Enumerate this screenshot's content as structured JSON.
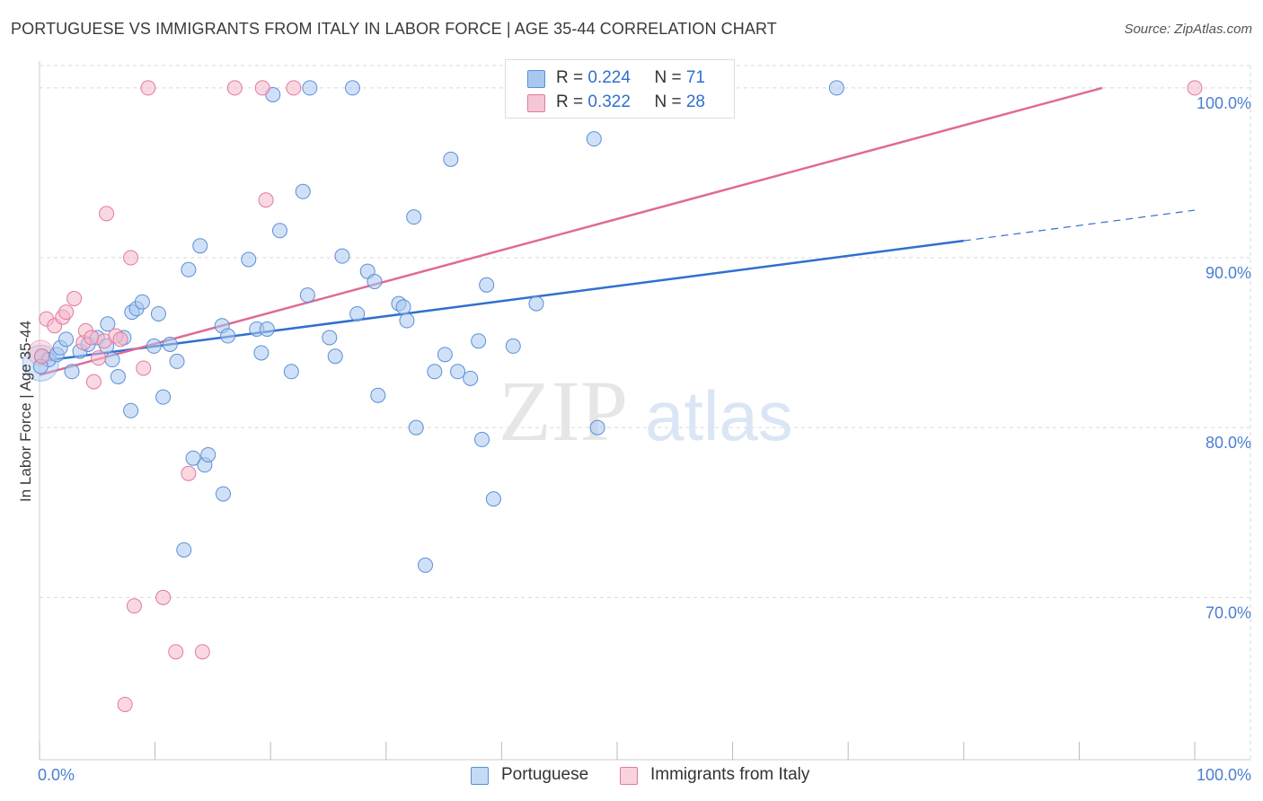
{
  "header": {
    "title": "PORTUGUESE VS IMMIGRANTS FROM ITALY IN LABOR FORCE | AGE 35-44 CORRELATION CHART",
    "source": "Source: ZipAtlas.com"
  },
  "legend": {
    "rows": [
      {
        "r_label": "R = ",
        "r_value": "0.224",
        "n_label": "N = ",
        "n_value": "71"
      },
      {
        "r_label": "R = ",
        "r_value": "0.322",
        "n_label": "N = ",
        "n_value": "28"
      }
    ]
  },
  "colors": {
    "blue_fill": "#a9c8f0",
    "blue_stroke": "#5b8fd6",
    "blue_line": "#2f6fd0",
    "pink_fill": "#f5b8cb",
    "pink_stroke": "#e07aa0",
    "pink_line": "#e06a95",
    "grid": "#d9d9d9",
    "tick_text": "#4a7fd0"
  },
  "watermark": {
    "zip": "ZIP",
    "atlas": "atlas"
  },
  "chart_data": {
    "type": "scatter",
    "title": "PORTUGUESE VS IMMIGRANTS FROM ITALY IN LABOR FORCE | AGE 35-44 CORRELATION CHART",
    "xlabel": "",
    "ylabel": "In Labor Force | Age 35-44",
    "xlim": [
      0,
      100
    ],
    "ylim": [
      60.5,
      101
    ],
    "x_tick_labels": [
      "0.0%",
      "100.0%"
    ],
    "y_ticks": [
      {
        "value": 70,
        "label": "70.0%"
      },
      {
        "value": 80,
        "label": "80.0%"
      },
      {
        "value": 90,
        "label": "90.0%"
      },
      {
        "value": 100,
        "label": "100.0%"
      }
    ],
    "series": [
      {
        "name": "Portuguese",
        "r": 0.224,
        "n": 71,
        "trend": {
          "x0": 0,
          "y0": 83.9,
          "x1": 80,
          "y1": 91.0,
          "dash_x1": 100,
          "dash_y1": 92.8
        },
        "points": [
          [
            0.2,
            84.2
          ],
          [
            0.8,
            84.0
          ],
          [
            1.5,
            84.3
          ],
          [
            1.8,
            84.7
          ],
          [
            2.3,
            85.2
          ],
          [
            2.8,
            83.3
          ],
          [
            3.5,
            84.5
          ],
          [
            4.2,
            84.9
          ],
          [
            5.0,
            85.3
          ],
          [
            5.8,
            84.8
          ],
          [
            5.9,
            86.1
          ],
          [
            6.3,
            84.0
          ],
          [
            6.8,
            83.0
          ],
          [
            7.3,
            85.3
          ],
          [
            7.9,
            81.0
          ],
          [
            8.0,
            86.8
          ],
          [
            8.4,
            87.0
          ],
          [
            8.9,
            87.4
          ],
          [
            9.9,
            84.8
          ],
          [
            10.3,
            86.7
          ],
          [
            10.7,
            81.8
          ],
          [
            11.3,
            84.9
          ],
          [
            11.9,
            83.9
          ],
          [
            12.5,
            72.8
          ],
          [
            12.9,
            89.3
          ],
          [
            13.3,
            78.2
          ],
          [
            13.9,
            90.7
          ],
          [
            14.3,
            77.8
          ],
          [
            14.6,
            78.4
          ],
          [
            15.9,
            76.1
          ],
          [
            15.8,
            86.0
          ],
          [
            16.3,
            85.4
          ],
          [
            18.1,
            89.9
          ],
          [
            18.8,
            85.8
          ],
          [
            19.2,
            84.4
          ],
          [
            19.7,
            85.8
          ],
          [
            20.2,
            99.6
          ],
          [
            20.8,
            91.6
          ],
          [
            21.8,
            83.3
          ],
          [
            22.8,
            93.9
          ],
          [
            23.2,
            87.8
          ],
          [
            23.4,
            100.0
          ],
          [
            25.1,
            85.3
          ],
          [
            25.6,
            84.2
          ],
          [
            26.2,
            90.1
          ],
          [
            27.1,
            100.0
          ],
          [
            27.5,
            86.7
          ],
          [
            28.4,
            89.2
          ],
          [
            29.0,
            88.6
          ],
          [
            29.3,
            81.9
          ],
          [
            31.1,
            87.3
          ],
          [
            31.5,
            87.1
          ],
          [
            31.8,
            86.3
          ],
          [
            32.4,
            92.4
          ],
          [
            32.6,
            80.0
          ],
          [
            33.4,
            71.9
          ],
          [
            34.2,
            83.3
          ],
          [
            35.1,
            84.3
          ],
          [
            35.6,
            95.8
          ],
          [
            36.2,
            83.3
          ],
          [
            37.3,
            82.9
          ],
          [
            38.0,
            85.1
          ],
          [
            38.3,
            79.3
          ],
          [
            38.7,
            88.4
          ],
          [
            39.3,
            75.8
          ],
          [
            41.0,
            84.8
          ],
          [
            43.0,
            87.3
          ],
          [
            48.0,
            97.0
          ],
          [
            48.3,
            80.0
          ],
          [
            69.0,
            100.0
          ],
          [
            0.1,
            83.6
          ]
        ]
      },
      {
        "name": "Immigrants from Italy",
        "r": 0.322,
        "n": 28,
        "trend": {
          "x0": 0,
          "y0": 83.1,
          "x1": 92,
          "y1": 100.0
        },
        "points": [
          [
            0.2,
            84.2
          ],
          [
            0.6,
            86.4
          ],
          [
            1.3,
            86.0
          ],
          [
            2.0,
            86.5
          ],
          [
            2.3,
            86.8
          ],
          [
            3.0,
            87.6
          ],
          [
            3.8,
            85.0
          ],
          [
            4.0,
            85.7
          ],
          [
            4.5,
            85.3
          ],
          [
            4.7,
            82.7
          ],
          [
            5.1,
            84.1
          ],
          [
            5.6,
            85.1
          ],
          [
            5.8,
            92.6
          ],
          [
            6.6,
            85.4
          ],
          [
            7.0,
            85.2
          ],
          [
            7.4,
            63.7
          ],
          [
            7.9,
            90.0
          ],
          [
            8.2,
            69.5
          ],
          [
            9.0,
            83.5
          ],
          [
            9.4,
            100.0
          ],
          [
            10.7,
            70.0
          ],
          [
            11.8,
            66.8
          ],
          [
            12.9,
            77.3
          ],
          [
            14.1,
            66.8
          ],
          [
            16.9,
            100.0
          ],
          [
            19.3,
            100.0
          ],
          [
            19.6,
            93.4
          ],
          [
            22.0,
            100.0
          ]
        ]
      }
    ],
    "extra_point": {
      "series": "Immigrants from Italy",
      "x": 100,
      "y": 100.0
    }
  },
  "bottom_legend": {
    "items": [
      {
        "label": "Portuguese"
      },
      {
        "label": "Immigrants from Italy"
      }
    ]
  }
}
